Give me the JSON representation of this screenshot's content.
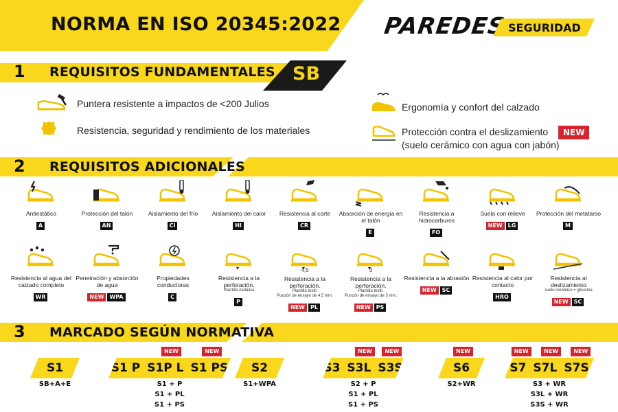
{
  "header": {
    "title": "NORMA EN ISO 20345:2022",
    "brand": "PAREDES",
    "brand_tag": "SEGURIDAD"
  },
  "section1": {
    "number": "1",
    "title": "REQUISITOS FUNDAMENTALES",
    "badge": "SB",
    "items": [
      {
        "icon": "toe-cap-hammer-icon",
        "text": "Puntera resistente a impactos de <200 Julios"
      },
      {
        "icon": "leather-hide-icon",
        "text": "Resistencia, seguridad y rendimiento de los materiales"
      },
      {
        "icon": "ergonomic-shoe-icon",
        "text": "Ergonomía y confort del calzado"
      },
      {
        "icon": "slip-resistance-shoe-icon",
        "text": "Protección contra el deslizamiento",
        "text2": "(suelo cerámico con agua con jabón)",
        "new": "NEW"
      }
    ]
  },
  "section2": {
    "number": "2",
    "title": "REQUISITOS ADICIONALES",
    "row1": [
      {
        "icon": "lightning-shoe-icon",
        "label": "Antiestático",
        "codes": [
          "A"
        ]
      },
      {
        "icon": "heel-shoe-icon",
        "label": "Protección del talón",
        "codes": [
          "AN"
        ]
      },
      {
        "icon": "cold-thermometer-shoe-icon",
        "label": "Aislamiento del frío",
        "codes": [
          "CI"
        ]
      },
      {
        "icon": "heat-thermometer-shoe-icon",
        "label": "Aislamiento del calor",
        "codes": [
          "HI"
        ]
      },
      {
        "icon": "cutter-shoe-icon",
        "label": "Resistencia al corte",
        "codes": [
          "CR"
        ]
      },
      {
        "icon": "spring-shoe-icon",
        "label": "Absorción de energía en el talón",
        "codes": [
          "E"
        ]
      },
      {
        "icon": "fuel-pump-shoe-icon",
        "label": "Resistencia a hidrocarburos",
        "codes": [
          "FO"
        ]
      },
      {
        "icon": "cleated-sole-icon",
        "label": "Suela con relieve",
        "codes": [
          "NEW",
          "LG"
        ]
      },
      {
        "icon": "metatarsal-shoe-icon",
        "label": "Protección del metatarso",
        "codes": [
          "M"
        ]
      }
    ],
    "row2": [
      {
        "icon": "water-drops-shoe-icon",
        "label": "Resistencia al agua del calzado completo",
        "codes": [
          "WR"
        ]
      },
      {
        "icon": "tap-water-shoe-icon",
        "label": "Penetración y absorción de agua",
        "codes": [
          "NEW",
          "WPA"
        ]
      },
      {
        "icon": "conductive-shoe-icon",
        "label": "Propiedades conductoras",
        "codes": [
          "C"
        ]
      },
      {
        "icon": "nail-shoe-icon",
        "label": "Resistencia a la perforación.",
        "sub": "Plantilla metálica",
        "codes": [
          "P"
        ]
      },
      {
        "icon": "nail-4-5-shoe-icon",
        "label": "Resistencia a la perforación.",
        "sub": "Plantilla textil.",
        "sub2": "Punzón de ensayo de 4,5 mm.",
        "mark": "4,5",
        "codes": [
          "NEW",
          "PL"
        ]
      },
      {
        "icon": "nail-3-shoe-icon",
        "label": "Resistencia a la perforación.",
        "sub": "Plantilla textil.",
        "sub2": "Punzón de ensayo de 3 mm.",
        "mark": "3",
        "codes": [
          "NEW",
          "PS"
        ]
      },
      {
        "icon": "abrasion-shoe-icon",
        "label": "Resistencia a la abrasión",
        "codes": [
          "NEW",
          "SC"
        ]
      },
      {
        "icon": "hot-contact-shoe-icon",
        "label": "Resistencia al calor por contacto",
        "codes": [
          "HRO"
        ]
      },
      {
        "icon": "slip-ramp-shoe-icon",
        "label": "Resistencia al deslizamiento",
        "sub": "suelo cerámico + glicerina",
        "codes": [
          "NEW",
          "SC"
        ]
      }
    ]
  },
  "section3": {
    "number": "3",
    "title": "MARCADO SEGÚN NORMATIVA",
    "groups": [
      {
        "labels": [
          "S1"
        ],
        "new": [],
        "lines": [
          "SB+A+E"
        ]
      },
      {
        "labels": [
          "S1 P",
          "S1P L",
          "S1 PS"
        ],
        "new": [
          "NEW",
          "NEW"
        ],
        "lines": [
          "S1 + P",
          "S1 + PL",
          "S1 + PS"
        ]
      },
      {
        "labels": [
          "S2"
        ],
        "new": [],
        "lines": [
          "S1+WPA"
        ]
      },
      {
        "labels": [
          "S3",
          "S3L",
          "S3S"
        ],
        "new": [
          "NEW",
          "NEW"
        ],
        "lines": [
          "S2 + P",
          "S1 + PL",
          "S1 + PS"
        ]
      },
      {
        "labels": [
          "S6"
        ],
        "new": [
          "NEW"
        ],
        "lines": [
          "S2+WR"
        ]
      },
      {
        "labels": [
          "S7",
          "S7L",
          "S7S"
        ],
        "new": [
          "NEW",
          "NEW",
          "NEW"
        ],
        "lines": [
          "S3 + WR",
          "S3L + WR",
          "S3S + WR"
        ]
      }
    ]
  },
  "colors": {
    "accent": "#f9d71c",
    "dark": "#1a1a1a",
    "new": "#d9232d"
  }
}
